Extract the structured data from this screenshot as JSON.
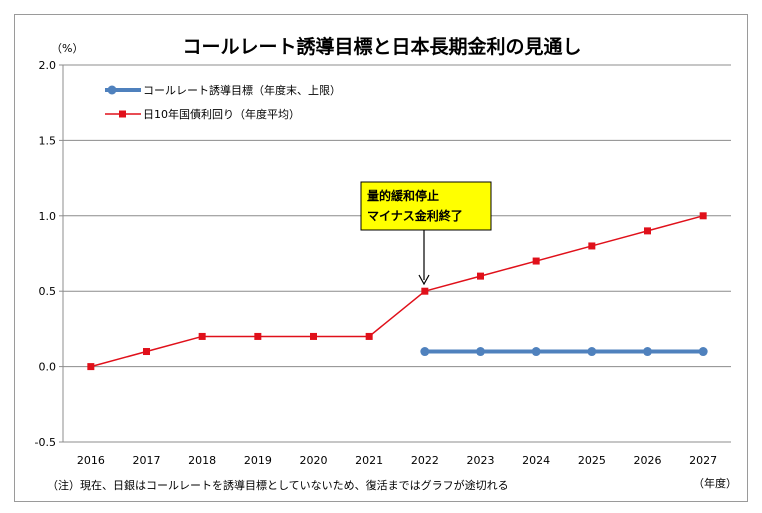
{
  "chart_data": {
    "type": "line",
    "title": "コールレート誘導目標と日本長期金利の見通し",
    "ylabel_unit": "（%）",
    "xlabel_unit": "（年度）",
    "ylim": [
      -0.5,
      2.0
    ],
    "yticks": [
      "-0.5",
      "0.0",
      "0.5",
      "1.0",
      "1.5",
      "2.0"
    ],
    "categories": [
      "2016",
      "2017",
      "2018",
      "2019",
      "2020",
      "2021",
      "2022",
      "2023",
      "2024",
      "2025",
      "2026",
      "2027"
    ],
    "series": [
      {
        "name": "コールレート誘導目標（年度末、上限）",
        "color": "#4f81bd",
        "marker": "circle",
        "values": [
          null,
          null,
          null,
          null,
          null,
          null,
          0.1,
          0.1,
          0.1,
          0.1,
          0.1,
          0.1
        ]
      },
      {
        "name": "日10年国債利回り（年度平均）",
        "color": "#e0101a",
        "marker": "square",
        "values": [
          0.0,
          0.1,
          0.2,
          0.2,
          0.2,
          0.2,
          0.5,
          0.6,
          0.7,
          0.8,
          0.9,
          1.0
        ]
      }
    ],
    "annotation": {
      "lines": [
        "量的緩和停止",
        "マイナス金利終了"
      ],
      "target_category": "2022",
      "background": "#ffff00"
    },
    "legend_position": "top-left",
    "grid": true
  },
  "note": "（注）現在、日銀はコールレートを誘導目標としていないため、復活まではグラフが途切れる"
}
